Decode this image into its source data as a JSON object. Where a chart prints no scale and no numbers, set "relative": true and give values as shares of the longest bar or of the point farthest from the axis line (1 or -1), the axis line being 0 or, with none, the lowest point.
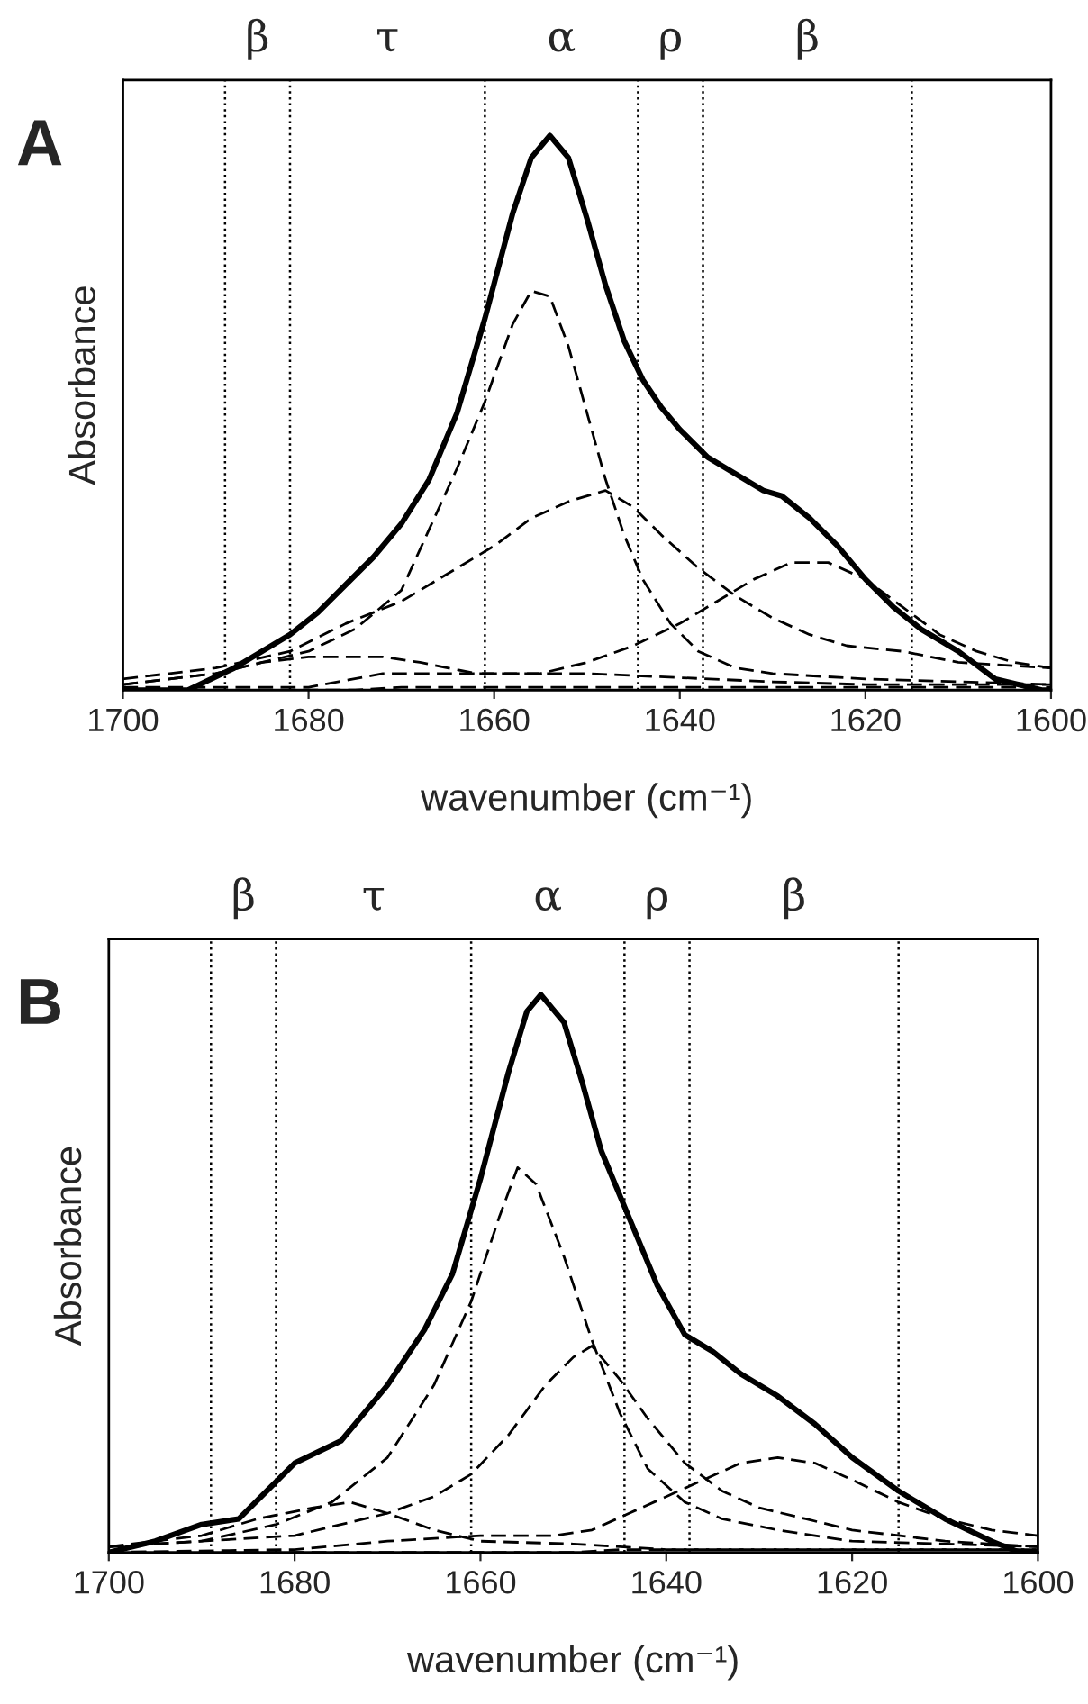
{
  "chart_data": [
    {
      "type": "line",
      "title": "A",
      "xlabel": "wavenumber (cm⁻¹)",
      "ylabel": "Absorbance",
      "relative": true,
      "xlim": [
        1700,
        1600
      ],
      "xticks": [
        1700,
        1680,
        1660,
        1640,
        1620,
        1600
      ],
      "tick_labels": "x",
      "grid": false,
      "legend": false,
      "series": [
        {
          "color": "#000000",
          "line_style": "solid",
          "x": [
            1700,
            1693,
            1688,
            1685,
            1682,
            1679,
            1676,
            1673,
            1670,
            1667,
            1664,
            1661,
            1658,
            1656,
            1654,
            1652,
            1650,
            1648,
            1646,
            1644,
            1642,
            1640,
            1637,
            1634,
            1631,
            1629,
            1626,
            1623,
            1620,
            1617,
            1614,
            1610,
            1606,
            1601,
            1600
          ],
          "values": [
            0.0,
            0.0,
            0.04,
            0.07,
            0.1,
            0.14,
            0.19,
            0.24,
            0.3,
            0.38,
            0.5,
            0.67,
            0.86,
            0.96,
            1.0,
            0.96,
            0.85,
            0.73,
            0.63,
            0.56,
            0.51,
            0.47,
            0.42,
            0.39,
            0.36,
            0.35,
            0.31,
            0.26,
            0.2,
            0.15,
            0.11,
            0.07,
            0.02,
            0.0,
            0.0
          ]
        },
        {
          "color": "#000000",
          "line_style": "dashed",
          "x": [
            1700,
            1690,
            1680,
            1675,
            1670,
            1667,
            1664,
            1661,
            1658,
            1656,
            1654,
            1652,
            1650,
            1648,
            1646,
            1644,
            1641,
            1638,
            1634,
            1630,
            1620,
            1610,
            1600
          ],
          "values": [
            0.01,
            0.03,
            0.07,
            0.11,
            0.18,
            0.29,
            0.4,
            0.52,
            0.66,
            0.72,
            0.71,
            0.62,
            0.5,
            0.38,
            0.28,
            0.2,
            0.12,
            0.07,
            0.04,
            0.03,
            0.02,
            0.015,
            0.01
          ]
        },
        {
          "color": "#000000",
          "line_style": "dashed",
          "x": [
            1700,
            1690,
            1682,
            1676,
            1670,
            1664,
            1660,
            1656,
            1652,
            1648,
            1645,
            1642,
            1638,
            1634,
            1630,
            1626,
            1622,
            1616,
            1610,
            1600
          ],
          "values": [
            0.02,
            0.04,
            0.07,
            0.12,
            0.16,
            0.22,
            0.26,
            0.31,
            0.34,
            0.36,
            0.33,
            0.28,
            0.22,
            0.17,
            0.13,
            0.1,
            0.08,
            0.07,
            0.05,
            0.04
          ]
        },
        {
          "color": "#000000",
          "line_style": "dashed",
          "x": [
            1700,
            1680,
            1672,
            1655,
            1650,
            1645,
            1640,
            1636,
            1632,
            1628,
            1624,
            1620,
            1616,
            1612,
            1608,
            1604,
            1600
          ],
          "values": [
            0.005,
            0.005,
            0.03,
            0.03,
            0.05,
            0.08,
            0.12,
            0.16,
            0.2,
            0.23,
            0.23,
            0.2,
            0.15,
            0.1,
            0.07,
            0.05,
            0.04
          ]
        },
        {
          "color": "#000000",
          "line_style": "dashed",
          "x": [
            1700,
            1690,
            1685,
            1680,
            1672,
            1668,
            1662,
            1656,
            1650,
            1630,
            1620,
            1600
          ],
          "values": [
            0.01,
            0.03,
            0.05,
            0.06,
            0.06,
            0.05,
            0.03,
            0.03,
            0.03,
            0.015,
            0.01,
            0.01
          ]
        },
        {
          "color": "#000000",
          "line_style": "dashed",
          "x": [
            1700,
            1675,
            1670,
            1600
          ],
          "values": [
            0.0,
            0.0,
            0.005,
            0.005
          ]
        }
      ],
      "ref_lines": [
        {
          "axis": "x",
          "value": 1689
        },
        {
          "axis": "x",
          "value": 1682
        },
        {
          "axis": "x",
          "value": 1661
        },
        {
          "axis": "x",
          "value": 1644.5
        },
        {
          "axis": "x",
          "value": 1637.5
        },
        {
          "axis": "x",
          "value": 1615
        }
      ],
      "annotations": [
        "β",
        "τ",
        "α",
        "ρ",
        "β"
      ]
    },
    {
      "type": "line",
      "title": "B",
      "xlabel": "wavenumber (cm⁻¹)",
      "ylabel": "Absorbance",
      "relative": true,
      "xlim": [
        1700,
        1600
      ],
      "xticks": [
        1700,
        1680,
        1660,
        1640,
        1620,
        1600
      ],
      "tick_labels": "x",
      "grid": false,
      "legend": false,
      "series": [
        {
          "color": "#000000",
          "line_style": "solid",
          "x": [
            1700,
            1695,
            1690,
            1686,
            1683,
            1680,
            1675,
            1670,
            1666,
            1663,
            1660,
            1657,
            1655,
            1653.5,
            1651,
            1649,
            1647,
            1644,
            1641,
            1638,
            1635,
            1632,
            1628,
            1624,
            1620,
            1615,
            1610,
            1605,
            1602,
            1600
          ],
          "values": [
            0.0,
            0.02,
            0.05,
            0.06,
            0.11,
            0.16,
            0.2,
            0.3,
            0.4,
            0.5,
            0.67,
            0.86,
            0.97,
            1.0,
            0.95,
            0.84,
            0.72,
            0.6,
            0.48,
            0.39,
            0.36,
            0.32,
            0.28,
            0.23,
            0.17,
            0.11,
            0.06,
            0.02,
            0.0,
            0.0
          ]
        },
        {
          "color": "#000000",
          "line_style": "dashed",
          "x": [
            1700,
            1690,
            1682,
            1676,
            1670,
            1665,
            1661,
            1658,
            1656,
            1654,
            1651,
            1648,
            1645,
            1642,
            1638,
            1634,
            1628,
            1620,
            1600
          ],
          "values": [
            0.01,
            0.02,
            0.05,
            0.09,
            0.17,
            0.3,
            0.45,
            0.6,
            0.69,
            0.66,
            0.53,
            0.38,
            0.25,
            0.15,
            0.09,
            0.06,
            0.04,
            0.02,
            0.01
          ]
        },
        {
          "color": "#000000",
          "line_style": "dashed",
          "x": [
            1700,
            1690,
            1680,
            1675,
            1670,
            1665,
            1661,
            1657,
            1653,
            1650,
            1648,
            1645,
            1642,
            1638,
            1634,
            1630,
            1625,
            1620,
            1610,
            1600
          ],
          "values": [
            0.01,
            0.02,
            0.03,
            0.05,
            0.07,
            0.1,
            0.14,
            0.21,
            0.3,
            0.35,
            0.37,
            0.31,
            0.24,
            0.16,
            0.11,
            0.08,
            0.06,
            0.04,
            0.02,
            0.01
          ]
        },
        {
          "color": "#000000",
          "line_style": "dashed",
          "x": [
            1700,
            1680,
            1670,
            1660,
            1652,
            1648,
            1644,
            1640,
            1636,
            1632,
            1628,
            1624,
            1620,
            1615,
            1610,
            1605,
            1600
          ],
          "values": [
            0.0,
            0.005,
            0.02,
            0.03,
            0.03,
            0.04,
            0.07,
            0.1,
            0.13,
            0.16,
            0.17,
            0.16,
            0.13,
            0.09,
            0.06,
            0.04,
            0.03
          ]
        },
        {
          "color": "#000000",
          "line_style": "dashed",
          "x": [
            1700,
            1690,
            1684,
            1678,
            1674,
            1670,
            1665,
            1660,
            1650,
            1640,
            1600
          ],
          "values": [
            0.01,
            0.03,
            0.06,
            0.08,
            0.09,
            0.07,
            0.04,
            0.02,
            0.015,
            0.005,
            0.005
          ]
        },
        {
          "color": "#000000",
          "line_style": "dashed",
          "x": [
            1700,
            1650,
            1645,
            1600
          ],
          "values": [
            0.0,
            0.0,
            0.005,
            0.005
          ]
        }
      ],
      "ref_lines": [
        {
          "axis": "x",
          "value": 1689
        },
        {
          "axis": "x",
          "value": 1682
        },
        {
          "axis": "x",
          "value": 1661
        },
        {
          "axis": "x",
          "value": 1644.5
        },
        {
          "axis": "x",
          "value": 1637.5
        },
        {
          "axis": "x",
          "value": 1615
        }
      ],
      "annotations": [
        "β",
        "τ",
        "α",
        "ρ",
        "β"
      ]
    }
  ]
}
